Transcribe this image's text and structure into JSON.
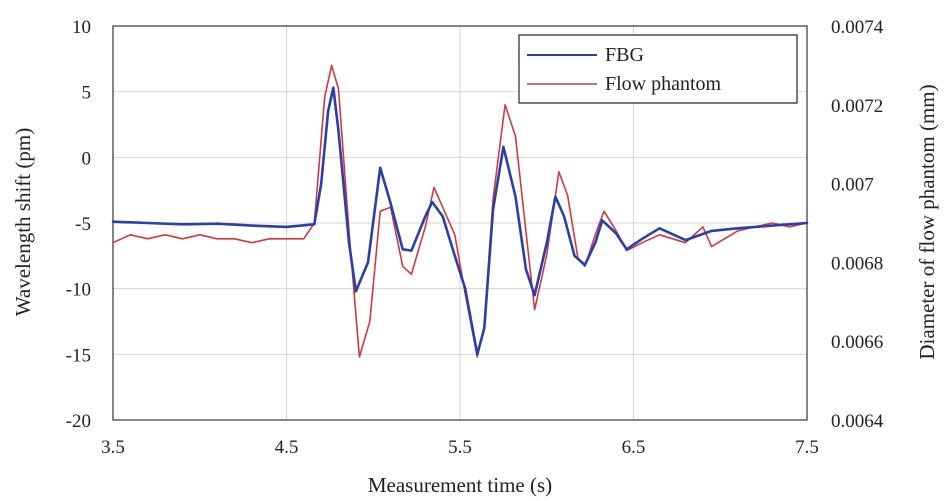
{
  "chart_data": {
    "type": "line",
    "title": "",
    "xlabel": "Measurement time (s)",
    "ylabel": "Wavelength shift (pm)",
    "y2label": "Diameter of flow phantom (mm)",
    "xlim": [
      3.5,
      7.5
    ],
    "ylim": [
      -20,
      10
    ],
    "y2lim": [
      0.0064,
      0.0074
    ],
    "x_ticks": [
      "3.5",
      "4.5",
      "5.5",
      "6.5",
      "7.5"
    ],
    "y_ticks": [
      "-20",
      "-15",
      "-10",
      "-5",
      "0",
      "5",
      "10"
    ],
    "y2_ticks": [
      "0.0064",
      "0.0066",
      "0.0068",
      "0.007",
      "0.0072",
      "0.0074"
    ],
    "grid": true,
    "legend_position": "top-right",
    "series": [
      {
        "name": "FBG",
        "axis": "left",
        "color": "#2b3fa8",
        "x": [
          3.5,
          3.7,
          3.9,
          4.1,
          4.3,
          4.5,
          4.66,
          4.7,
          4.74,
          4.77,
          4.8,
          4.86,
          4.9,
          4.97,
          5.04,
          5.1,
          5.17,
          5.22,
          5.3,
          5.34,
          5.4,
          5.47,
          5.53,
          5.6,
          5.64,
          5.69,
          5.75,
          5.82,
          5.88,
          5.93,
          6.0,
          6.05,
          6.1,
          6.16,
          6.22,
          6.28,
          6.32,
          6.4,
          6.46,
          6.55,
          6.65,
          6.8,
          6.95,
          7.1,
          7.3,
          7.5
        ],
        "y": [
          -4.9,
          -5.0,
          -5.1,
          -5.05,
          -5.2,
          -5.3,
          -5.1,
          -2.0,
          3.5,
          5.3,
          2.0,
          -6.5,
          -10.2,
          -8.0,
          -0.8,
          -3.5,
          -7.0,
          -7.1,
          -4.5,
          -3.4,
          -4.5,
          -7.5,
          -10.0,
          -15.0,
          -13.0,
          -4.0,
          0.8,
          -3.0,
          -8.5,
          -10.5,
          -6.5,
          -3.0,
          -4.5,
          -7.5,
          -8.2,
          -6.5,
          -4.8,
          -5.8,
          -7.0,
          -6.2,
          -5.4,
          -6.3,
          -5.6,
          -5.4,
          -5.2,
          -5.0
        ]
      },
      {
        "name": "Flow phantom",
        "axis": "right",
        "color": "#d2393e",
        "x": [
          3.5,
          3.6,
          3.7,
          3.8,
          3.9,
          4.0,
          4.1,
          4.2,
          4.3,
          4.4,
          4.5,
          4.6,
          4.66,
          4.72,
          4.76,
          4.8,
          4.86,
          4.92,
          4.98,
          5.04,
          5.1,
          5.17,
          5.22,
          5.3,
          5.35,
          5.4,
          5.47,
          5.53,
          5.6,
          5.64,
          5.69,
          5.76,
          5.82,
          5.88,
          5.93,
          6.0,
          6.07,
          6.12,
          6.18,
          6.22,
          6.28,
          6.33,
          6.4,
          6.46,
          6.55,
          6.65,
          6.8,
          6.9,
          6.95,
          7.1,
          7.2,
          7.3,
          7.4,
          7.5
        ],
        "y": [
          0.00685,
          0.00687,
          0.00686,
          0.00687,
          0.00686,
          0.00687,
          0.00686,
          0.00686,
          0.00685,
          0.00686,
          0.00686,
          0.00686,
          0.0069,
          0.00722,
          0.0073,
          0.00724,
          0.00688,
          0.00656,
          0.00665,
          0.00693,
          0.00694,
          0.00679,
          0.00677,
          0.00689,
          0.00699,
          0.00694,
          0.00687,
          0.00672,
          0.00656,
          0.00664,
          0.00696,
          0.0072,
          0.00712,
          0.00688,
          0.00668,
          0.00682,
          0.00703,
          0.00697,
          0.00681,
          0.00679,
          0.00687,
          0.00693,
          0.00688,
          0.00683,
          0.00685,
          0.00687,
          0.00685,
          0.00689,
          0.00684,
          0.00688,
          0.00689,
          0.0069,
          0.00689,
          0.0069
        ]
      }
    ]
  }
}
